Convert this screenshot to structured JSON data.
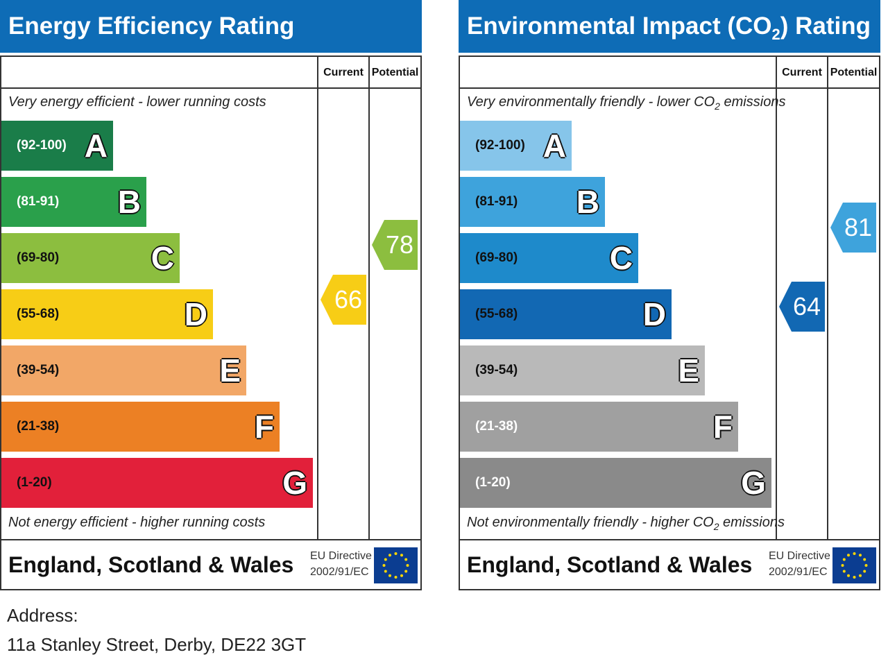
{
  "panels": [
    {
      "title_main": "Energy Efficiency Rating",
      "title_sub": "",
      "title_end": "",
      "col_current": "Current",
      "col_potential": "Potential",
      "top_note_main": "Very energy efficient - lower running costs",
      "top_note_sub": "",
      "top_note_end": "",
      "bottom_note_main": "Not energy efficient - higher running costs",
      "bottom_note_sub": "",
      "bottom_note_end": "",
      "region": "England, Scotland & Wales",
      "eu_line1": "EU Directive",
      "eu_line2": "2002/91/EC"
    },
    {
      "title_main": "Environmental Impact (CO",
      "title_sub": "2",
      "title_end": ") Rating",
      "col_current": "Current",
      "col_potential": "Potential",
      "top_note_main": "Very environmentally friendly - lower CO",
      "top_note_sub": "2",
      "top_note_end": " emissions",
      "bottom_note_main": "Not environmentally friendly - higher CO",
      "bottom_note_sub": "2",
      "bottom_note_end": " emissions",
      "region": "England, Scotland & Wales",
      "eu_line1": "EU Directive",
      "eu_line2": "2002/91/EC"
    }
  ],
  "chart_data": [
    {
      "type": "bar",
      "title": "Energy Efficiency Rating",
      "categories": [
        "A",
        "B",
        "C",
        "D",
        "E",
        "F",
        "G"
      ],
      "ranges": [
        "(92-100)",
        "(81-91)",
        "(69-80)",
        "(55-68)",
        "(39-54)",
        "(21-38)",
        "(1-20)"
      ],
      "range_min": [
        92,
        81,
        69,
        55,
        39,
        21,
        1
      ],
      "colors": [
        "#1a7d49",
        "#2aa04b",
        "#8cbe3f",
        "#f7cd16",
        "#f2a767",
        "#ec8024",
        "#e2203a"
      ],
      "range_text_colors": [
        "#ffffff",
        "#ffffff",
        "#111111",
        "#111111",
        "#111111",
        "#111111",
        "#111111"
      ],
      "current": 66,
      "current_color": "#f7cd16",
      "potential": 78,
      "potential_color": "#8cbe3f"
    },
    {
      "type": "bar",
      "title": "Environmental Impact (CO2) Rating",
      "categories": [
        "A",
        "B",
        "C",
        "D",
        "E",
        "F",
        "G"
      ],
      "ranges": [
        "(92-100)",
        "(81-91)",
        "(69-80)",
        "(55-68)",
        "(39-54)",
        "(21-38)",
        "(1-20)"
      ],
      "range_min": [
        92,
        81,
        69,
        55,
        39,
        21,
        1
      ],
      "colors": [
        "#86c5ea",
        "#3ea3dc",
        "#1e8acb",
        "#1268b3",
        "#b9b9b9",
        "#a0a0a0",
        "#8a8a8a"
      ],
      "range_text_colors": [
        "#111111",
        "#111111",
        "#111111",
        "#111111",
        "#111111",
        "#ffffff",
        "#ffffff"
      ],
      "current": 64,
      "current_color": "#1268b3",
      "potential": 81,
      "potential_color": "#3ea3dc"
    }
  ],
  "address": {
    "label": "Address:",
    "line": "11a Stanley Street, Derby, DE22 3GT"
  }
}
